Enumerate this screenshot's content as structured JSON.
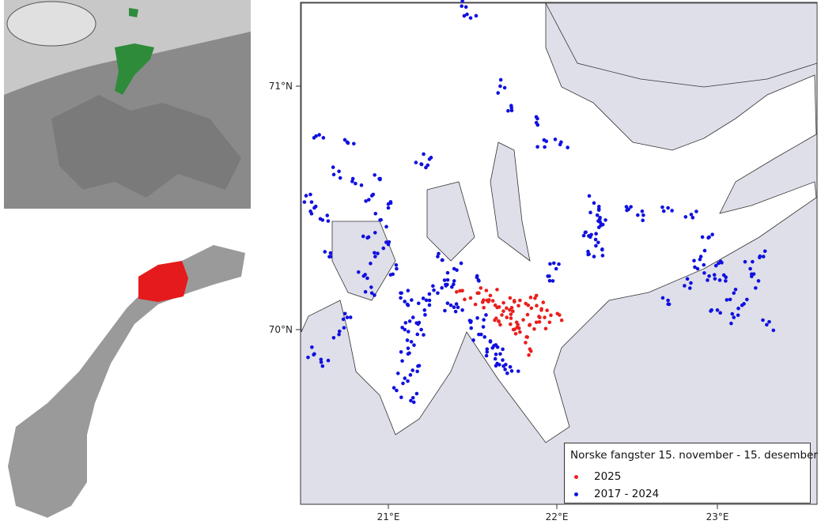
{
  "map": {
    "axes": {
      "lat_labels": [
        "71°N",
        "70°N"
      ],
      "lon_labels": [
        "21°E",
        "22°E",
        "23°E"
      ]
    },
    "legend": {
      "title": "Norske fangster 15. november - 15. desember",
      "items": [
        {
          "label": "2025",
          "color": "#e8201e"
        },
        {
          "label": "2017 - 2024",
          "color": "#1010e0"
        }
      ]
    },
    "colors": {
      "land": "#dfdfea",
      "sea": "#ffffff",
      "highlight_region": "#e41a1c",
      "norway_inset": "#2e8b3a"
    },
    "catches_2025": [
      [
        21.45,
        70.16
      ],
      [
        21.5,
        70.13
      ],
      [
        21.55,
        70.15
      ],
      [
        21.6,
        70.12
      ],
      [
        21.65,
        70.1
      ],
      [
        21.7,
        70.11
      ],
      [
        21.75,
        70.09
      ],
      [
        21.8,
        70.12
      ],
      [
        21.85,
        70.1
      ],
      [
        21.9,
        70.14
      ],
      [
        21.72,
        70.05
      ],
      [
        21.78,
        70.03
      ],
      [
        21.82,
        70.04
      ],
      [
        21.86,
        70.02
      ],
      [
        21.9,
        70.03
      ],
      [
        21.95,
        70.05
      ],
      [
        21.8,
        69.99
      ],
      [
        21.84,
        69.97
      ],
      [
        21.76,
        70.0
      ],
      [
        21.68,
        70.02
      ],
      [
        21.98,
        70.03
      ],
      [
        22.04,
        70.06
      ],
      [
        21.62,
        70.14
      ],
      [
        21.58,
        70.09
      ],
      [
        21.86,
        69.92
      ],
      [
        21.93,
        70.08
      ],
      [
        21.74,
        70.13
      ],
      [
        21.69,
        70.06
      ]
    ],
    "catches_2017_2024": [
      [
        20.95,
        70.62
      ],
      [
        20.9,
        70.55
      ],
      [
        21.0,
        70.5
      ],
      [
        20.95,
        70.45
      ],
      [
        20.88,
        70.38
      ],
      [
        20.92,
        70.3
      ],
      [
        21.0,
        70.35
      ],
      [
        21.05,
        70.25
      ],
      [
        20.85,
        70.22
      ],
      [
        20.9,
        70.15
      ],
      [
        21.08,
        70.15
      ],
      [
        21.12,
        70.1
      ],
      [
        21.15,
        70.05
      ],
      [
        21.1,
        70.0
      ],
      [
        21.14,
        69.95
      ],
      [
        21.12,
        69.9
      ],
      [
        21.18,
        69.85
      ],
      [
        21.1,
        69.8
      ],
      [
        21.2,
        70.0
      ],
      [
        21.22,
        70.08
      ],
      [
        21.25,
        70.12
      ],
      [
        21.3,
        70.15
      ],
      [
        21.35,
        70.18
      ],
      [
        21.4,
        70.2
      ],
      [
        21.38,
        70.1
      ],
      [
        21.45,
        70.08
      ],
      [
        21.5,
        70.03
      ],
      [
        21.55,
        69.98
      ],
      [
        21.6,
        69.92
      ],
      [
        21.65,
        69.88
      ],
      [
        21.7,
        69.85
      ],
      [
        21.62,
        69.95
      ],
      [
        21.58,
        70.04
      ],
      [
        21.68,
        69.9
      ],
      [
        21.75,
        69.83
      ],
      [
        20.55,
        70.5
      ],
      [
        20.6,
        70.45
      ],
      [
        20.65,
        70.3
      ],
      [
        20.55,
        69.9
      ],
      [
        20.6,
        69.85
      ],
      [
        20.7,
        69.98
      ],
      [
        20.75,
        70.05
      ],
      [
        20.5,
        70.55
      ],
      [
        20.7,
        70.65
      ],
      [
        20.8,
        70.6
      ],
      [
        20.58,
        70.8
      ],
      [
        20.75,
        70.77
      ],
      [
        21.2,
        70.68
      ],
      [
        21.25,
        70.7
      ],
      [
        21.45,
        71.35
      ],
      [
        21.5,
        71.28
      ],
      [
        21.68,
        71.0
      ],
      [
        21.75,
        70.9
      ],
      [
        21.9,
        70.85
      ],
      [
        21.95,
        70.75
      ],
      [
        22.05,
        70.77
      ],
      [
        22.25,
        70.52
      ],
      [
        22.27,
        70.47
      ],
      [
        22.28,
        70.42
      ],
      [
        22.26,
        70.37
      ],
      [
        22.3,
        70.33
      ],
      [
        22.25,
        70.3
      ],
      [
        22.32,
        70.45
      ],
      [
        22.2,
        70.4
      ],
      [
        22.45,
        70.49
      ],
      [
        22.55,
        70.47
      ],
      [
        22.7,
        70.5
      ],
      [
        22.85,
        70.46
      ],
      [
        22.95,
        70.38
      ],
      [
        22.9,
        70.3
      ],
      [
        22.88,
        70.25
      ],
      [
        22.95,
        70.22
      ],
      [
        23.02,
        70.28
      ],
      [
        23.05,
        70.2
      ],
      [
        23.1,
        70.15
      ],
      [
        23.15,
        70.1
      ],
      [
        23.2,
        70.25
      ],
      [
        23.25,
        70.2
      ],
      [
        23.28,
        70.3
      ],
      [
        23.0,
        70.08
      ],
      [
        22.8,
        70.18
      ],
      [
        22.7,
        70.12
      ],
      [
        23.3,
        70.02
      ],
      [
        23.1,
        70.05
      ],
      [
        21.05,
        69.75
      ],
      [
        21.15,
        69.72
      ],
      [
        21.3,
        70.3
      ],
      [
        21.4,
        70.25
      ],
      [
        21.55,
        70.2
      ],
      [
        22.0,
        70.2
      ],
      [
        22.02,
        70.25
      ]
    ]
  }
}
